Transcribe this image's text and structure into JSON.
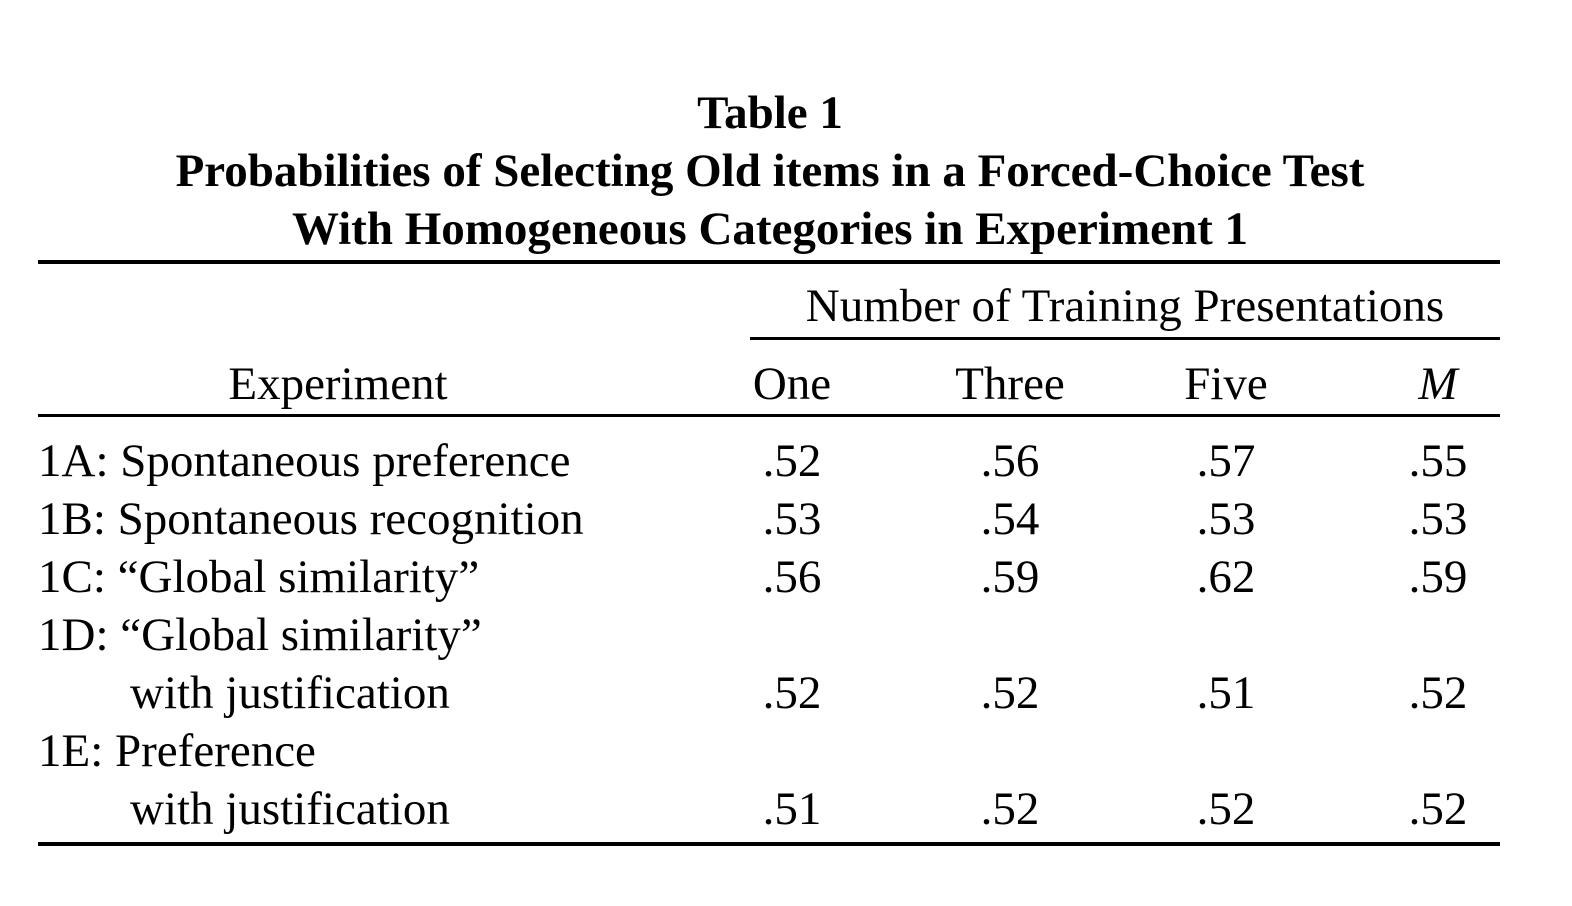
{
  "table": {
    "caption_number": "Table 1",
    "caption_lines": [
      "Probabilities of Selecting Old items in a Forced-Choice Test",
      "With Homogeneous Categories in Experiment 1"
    ],
    "spanner_header": "Number of Training Presentations",
    "row_header": "Experiment",
    "columns": [
      "One",
      "Three",
      "Five",
      "M"
    ],
    "rows": [
      {
        "label": "1A: Spontaneous preference",
        "values": [
          ".52",
          ".56",
          ".57",
          ".55"
        ]
      },
      {
        "label": "1B: Spontaneous recognition",
        "values": [
          ".53",
          ".54",
          ".53",
          ".53"
        ]
      },
      {
        "label": "1C: “Global similarity”",
        "values": [
          ".56",
          ".59",
          ".62",
          ".59"
        ]
      },
      {
        "label": "1D: “Global similarity”",
        "label_cont": "with justification",
        "values": [
          ".52",
          ".52",
          ".51",
          ".52"
        ]
      },
      {
        "label": "1E: Preference",
        "label_cont": "with justification",
        "values": [
          ".51",
          ".52",
          ".52",
          ".52"
        ]
      }
    ]
  }
}
